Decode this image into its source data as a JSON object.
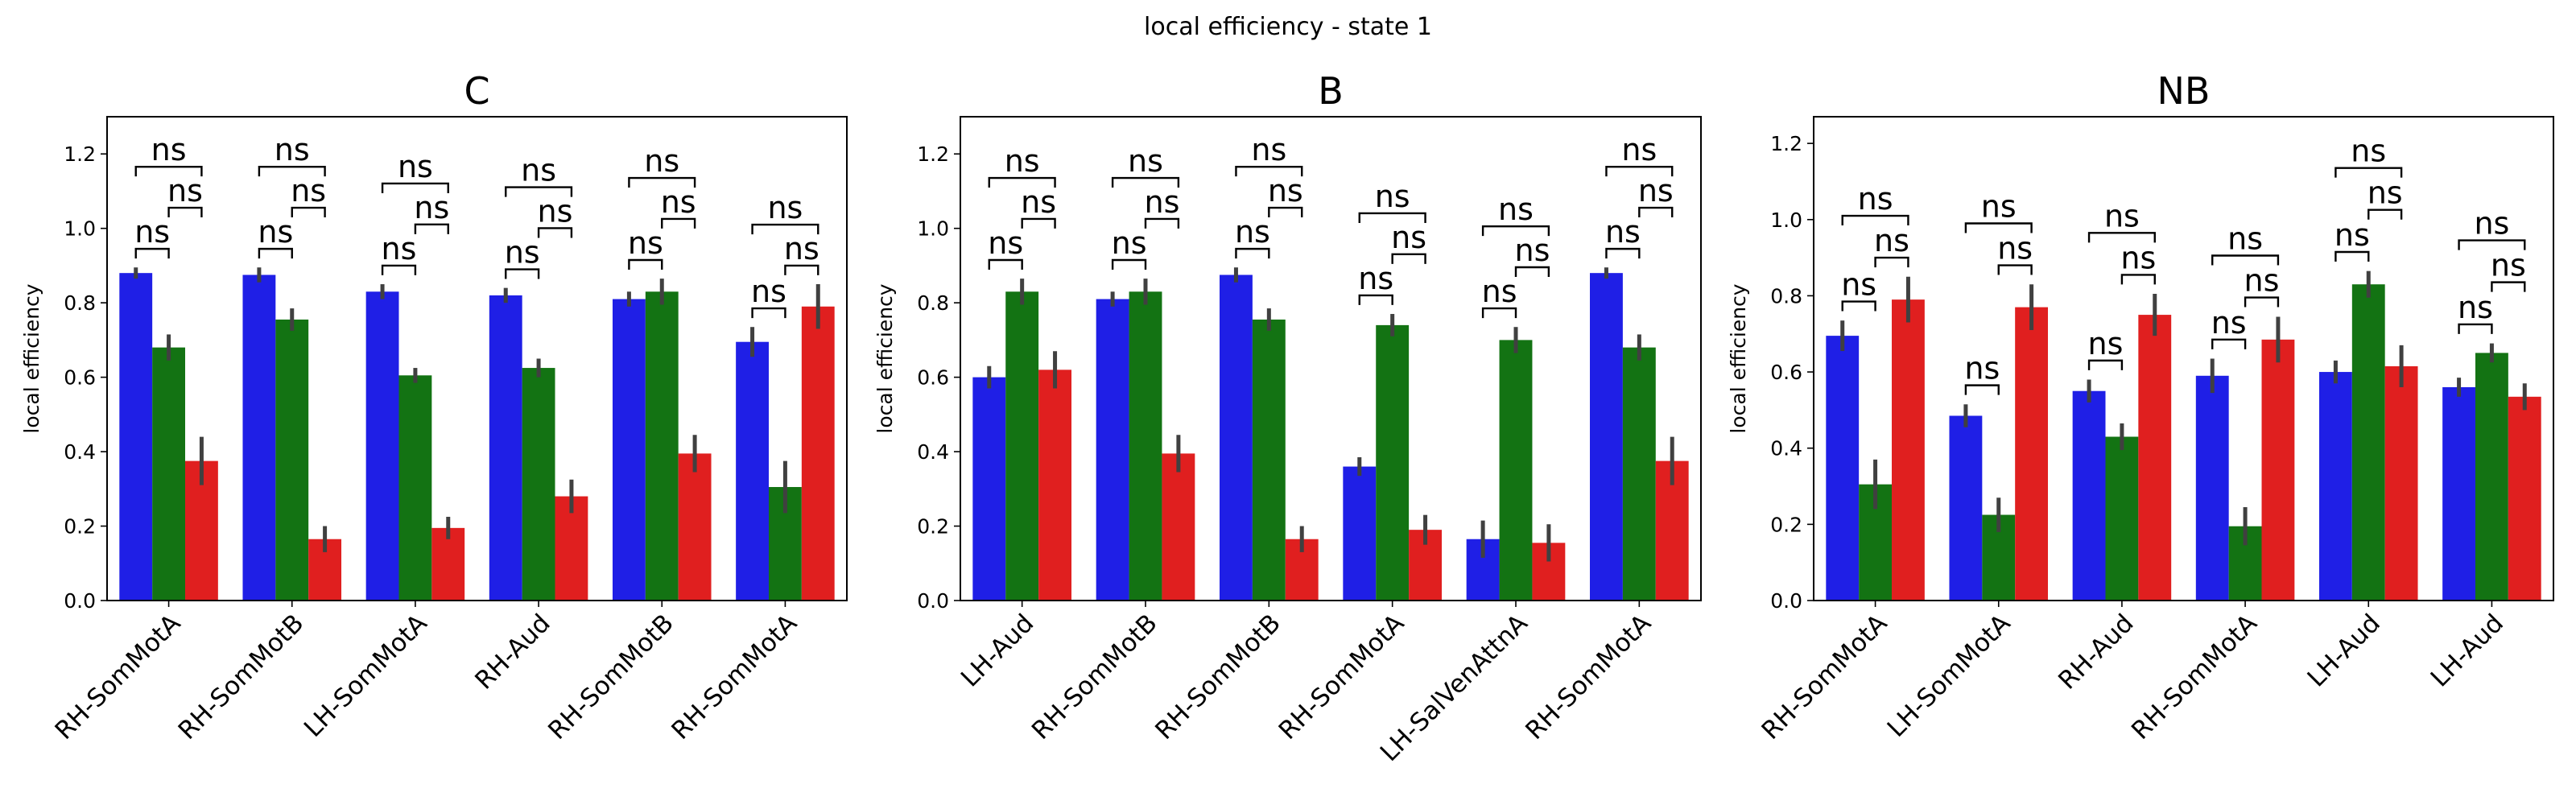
{
  "figure": {
    "suptitle": "local efficiency - state 1"
  },
  "colors": {
    "series": [
      "#1f1fe6",
      "#137313",
      "#e01f1f"
    ],
    "errorbar": "#404040"
  },
  "chart_data": [
    {
      "type": "bar",
      "title": "C",
      "ylabel": "local efficiency",
      "xlabel": "",
      "ylim": [
        0,
        1.3
      ],
      "yticks": [
        "0.0",
        "0.2",
        "0.4",
        "0.6",
        "0.8",
        "1.0",
        "1.2"
      ],
      "categories": [
        "RH-SomMotA",
        "RH-SomMotB",
        "LH-SomMotA",
        "RH-Aud",
        "RH-SomMotB",
        "RH-SomMotA"
      ],
      "series": [
        {
          "values": [
            0.88,
            0.875,
            0.83,
            0.82,
            0.81,
            0.695
          ],
          "err": [
            0.015,
            0.02,
            0.02,
            0.02,
            0.02,
            0.04
          ]
        },
        {
          "values": [
            0.68,
            0.755,
            0.605,
            0.625,
            0.83,
            0.305
          ],
          "err": [
            0.035,
            0.03,
            0.02,
            0.025,
            0.035,
            0.07
          ]
        },
        {
          "values": [
            0.375,
            0.165,
            0.195,
            0.28,
            0.395,
            0.79
          ],
          "err": [
            0.065,
            0.035,
            0.03,
            0.045,
            0.05,
            0.06
          ]
        }
      ],
      "annotations": [
        "ns",
        "ns",
        "ns",
        "ns",
        "ns",
        "ns",
        "ns",
        "ns",
        "ns",
        "ns",
        "ns",
        "ns",
        "ns",
        "ns",
        "ns",
        "ns",
        "ns",
        "ns"
      ]
    },
    {
      "type": "bar",
      "title": "B",
      "ylabel": "local efficiency",
      "xlabel": "",
      "ylim": [
        0,
        1.3
      ],
      "yticks": [
        "0.0",
        "0.2",
        "0.4",
        "0.6",
        "0.8",
        "1.0",
        "1.2"
      ],
      "categories": [
        "LH-Aud",
        "RH-SomMotB",
        "RH-SomMotB",
        "RH-SomMotA",
        "LH-SalVenAttnA",
        "RH-SomMotA"
      ],
      "series": [
        {
          "values": [
            0.6,
            0.81,
            0.875,
            0.36,
            0.165,
            0.88
          ],
          "err": [
            0.03,
            0.02,
            0.02,
            0.025,
            0.05,
            0.015
          ]
        },
        {
          "values": [
            0.83,
            0.83,
            0.755,
            0.74,
            0.7,
            0.68
          ],
          "err": [
            0.035,
            0.035,
            0.03,
            0.03,
            0.035,
            0.035
          ]
        },
        {
          "values": [
            0.62,
            0.395,
            0.165,
            0.19,
            0.155,
            0.375
          ],
          "err": [
            0.05,
            0.05,
            0.035,
            0.04,
            0.05,
            0.065
          ]
        }
      ],
      "annotations": [
        "ns",
        "ns",
        "ns",
        "ns",
        "ns",
        "ns",
        "ns",
        "ns",
        "ns",
        "ns",
        "ns",
        "ns",
        "ns",
        "ns",
        "ns",
        "ns",
        "ns",
        "ns"
      ]
    },
    {
      "type": "bar",
      "title": "NB",
      "ylabel": "local efficiency",
      "xlabel": "",
      "ylim": [
        0,
        1.27
      ],
      "yticks": [
        "0.0",
        "0.2",
        "0.4",
        "0.6",
        "0.8",
        "1.0",
        "1.2"
      ],
      "categories": [
        "RH-SomMotA",
        "LH-SomMotA",
        "RH-Aud",
        "RH-SomMotA",
        "LH-Aud",
        "LH-Aud"
      ],
      "series": [
        {
          "values": [
            0.695,
            0.485,
            0.55,
            0.59,
            0.6,
            0.56
          ],
          "err": [
            0.04,
            0.03,
            0.03,
            0.045,
            0.03,
            0.025
          ]
        },
        {
          "values": [
            0.305,
            0.225,
            0.43,
            0.195,
            0.83,
            0.65
          ],
          "err": [
            0.065,
            0.045,
            0.035,
            0.05,
            0.035,
            0.025
          ]
        },
        {
          "values": [
            0.79,
            0.77,
            0.75,
            0.685,
            0.615,
            0.535
          ],
          "err": [
            0.06,
            0.06,
            0.055,
            0.06,
            0.055,
            0.035
          ]
        }
      ],
      "annotations": [
        "ns",
        "ns",
        "ns",
        "ns",
        "ns",
        "ns",
        "ns",
        "ns",
        "ns",
        "ns",
        "ns",
        "ns",
        "ns",
        "ns",
        "ns",
        "ns",
        "ns",
        "ns"
      ]
    }
  ]
}
